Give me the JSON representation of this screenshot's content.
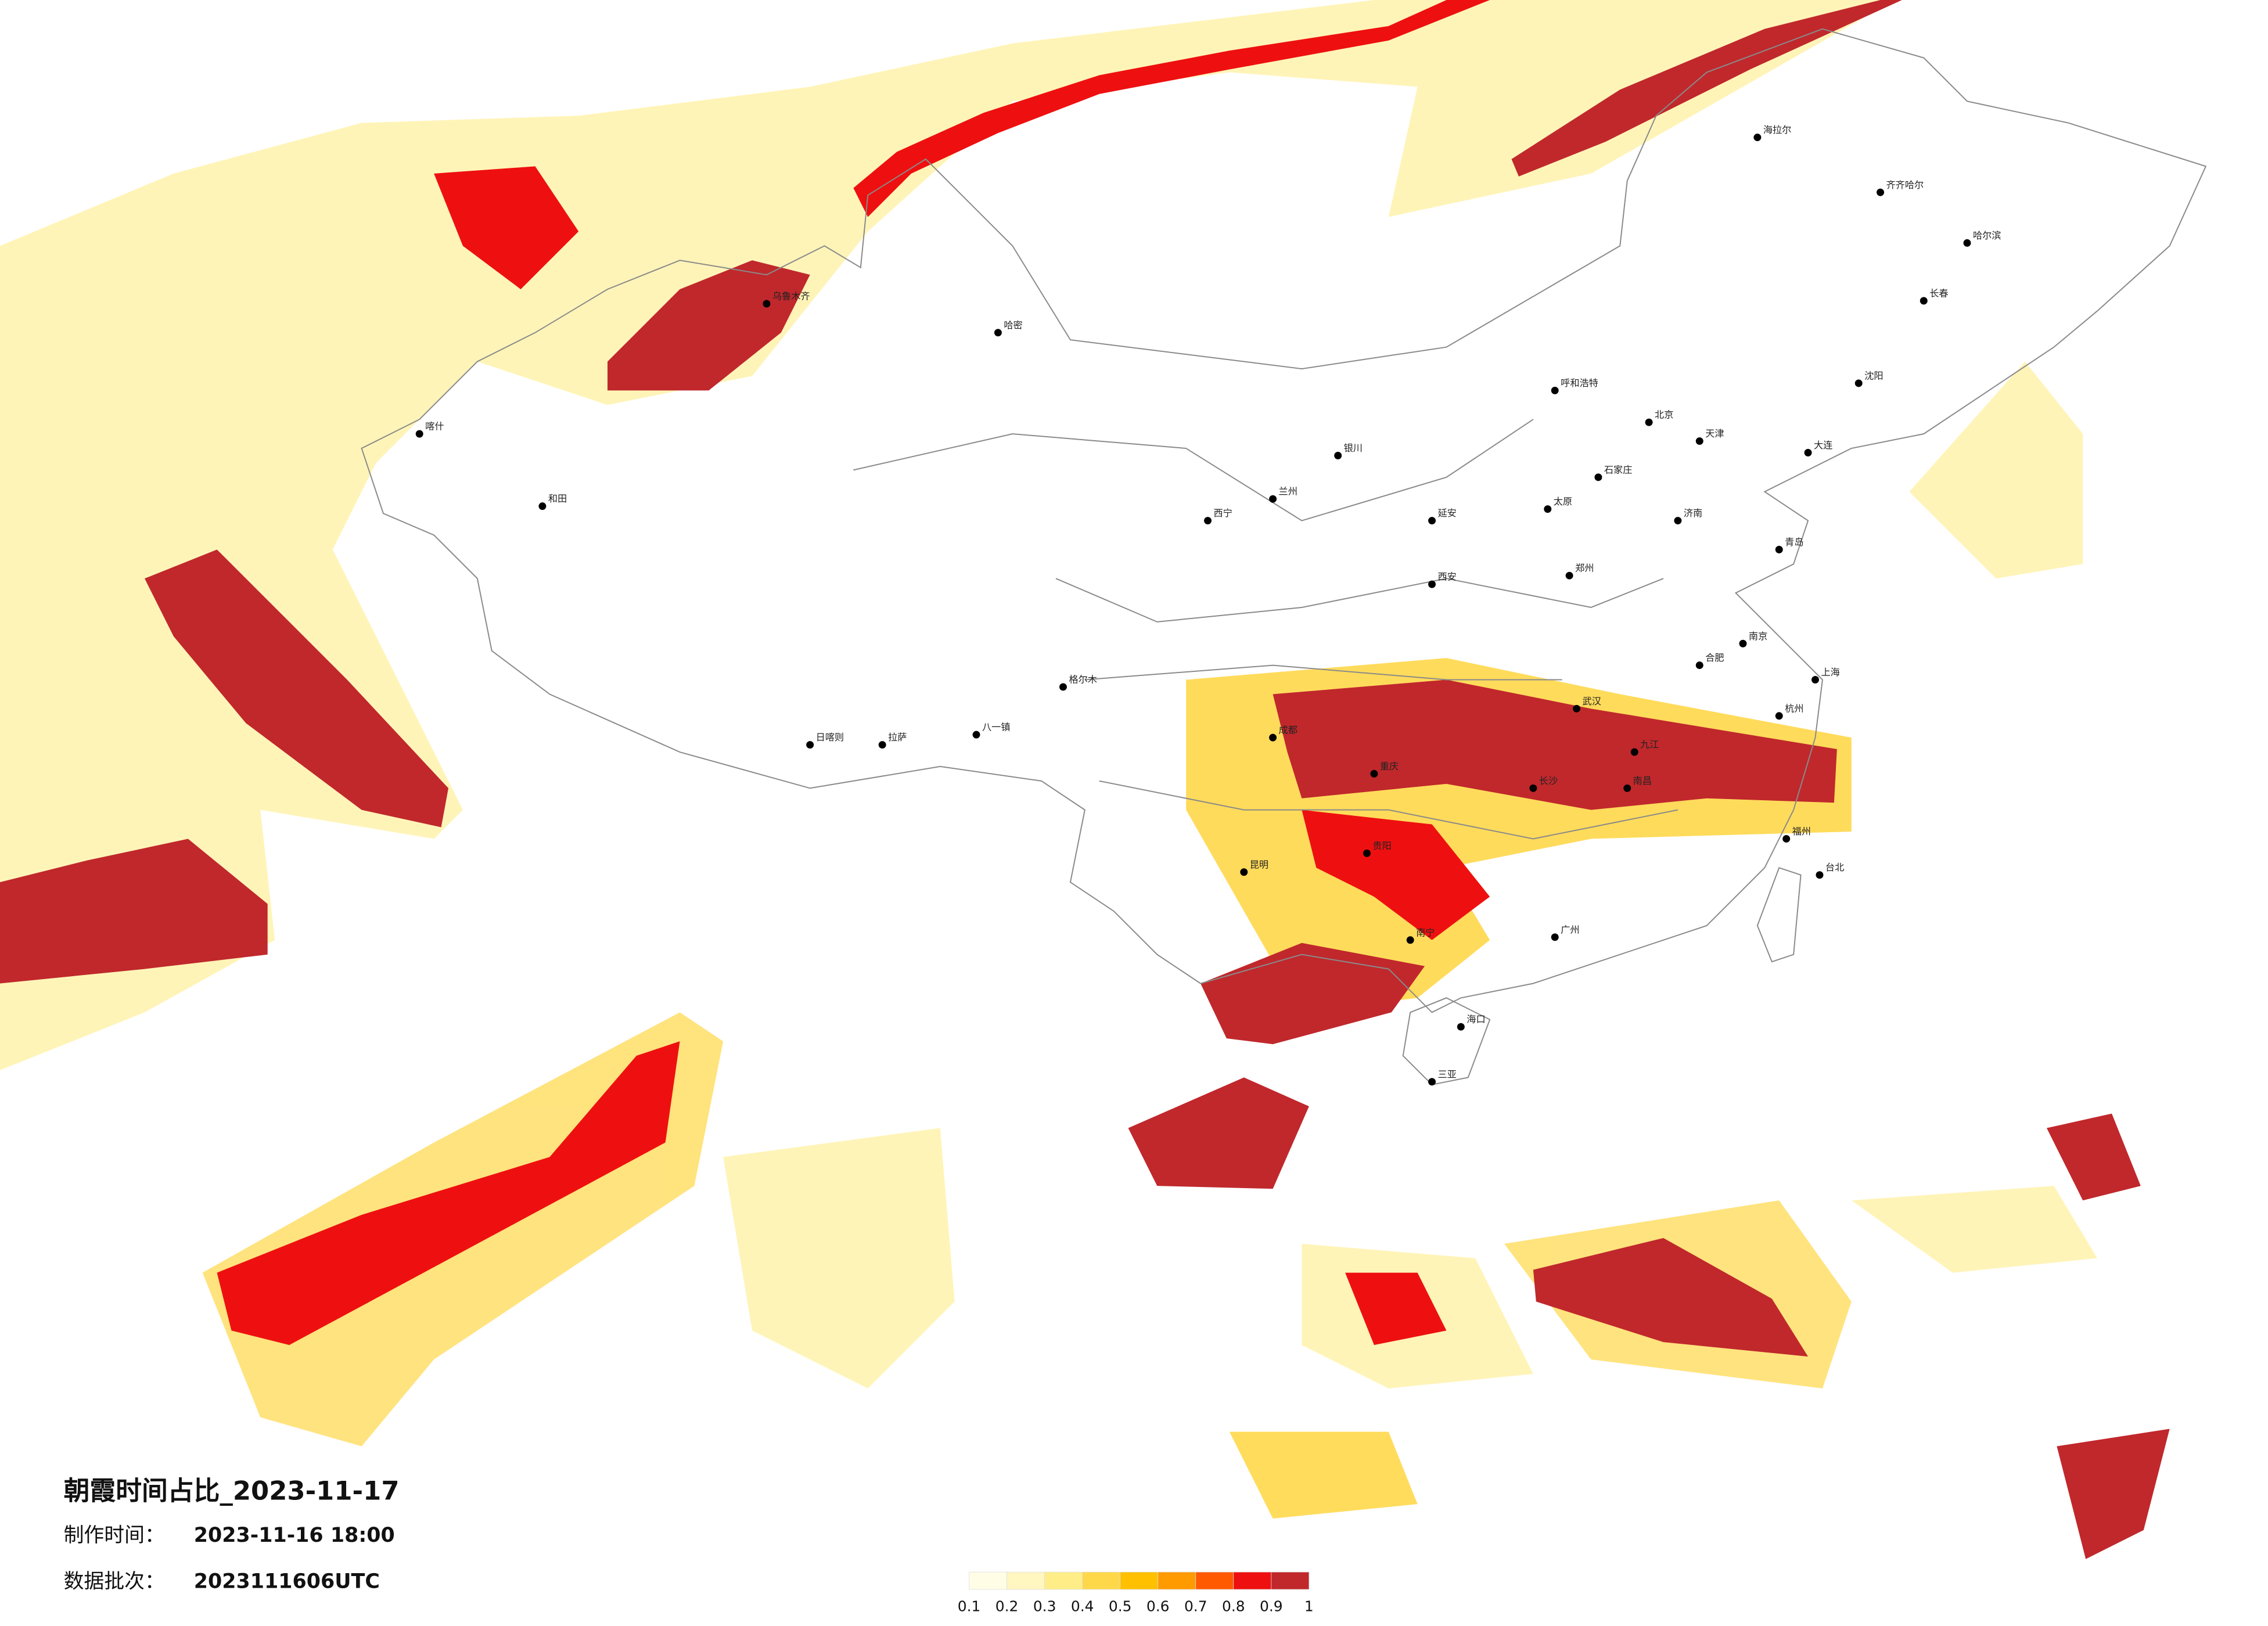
{
  "title": "朝霞时间占比_2023-11-17",
  "production_time": {
    "label": "制作时间：",
    "value": "2023-11-16 18:00"
  },
  "data_batch": {
    "label": "数据批次：",
    "value": "2023111606UTC"
  },
  "legend": {
    "ticks": [
      0.1,
      0.2,
      0.3,
      0.4,
      0.5,
      0.6,
      0.7,
      0.8,
      0.9,
      1
    ],
    "colors": [
      "#fffde6",
      "#fff6c0",
      "#ffee88",
      "#ffd84a",
      "#ffc000",
      "#ff9a00",
      "#ff5a00",
      "#ee1010",
      "#c0282c"
    ]
  },
  "cities": [
    "海拉尔",
    "齐齐哈尔",
    "哈尔滨",
    "长春",
    "沈阳",
    "大连",
    "北京",
    "天津",
    "石家庄",
    "太原",
    "呼和浩特",
    "济南",
    "青岛",
    "郑州",
    "西安",
    "兰州",
    "西宁",
    "银川",
    "乌鲁木齐",
    "喀什",
    "和田",
    "拉萨",
    "日喀则",
    "成都",
    "重庆",
    "贵阳",
    "昆明",
    "南宁",
    "广州",
    "长沙",
    "武汉",
    "南昌",
    "合肥",
    "南京",
    "上海",
    "杭州",
    "福州",
    "台北",
    "海口",
    "三亚",
    "八一镇",
    "格尔木",
    "哈密",
    "延安",
    "九江"
  ]
}
